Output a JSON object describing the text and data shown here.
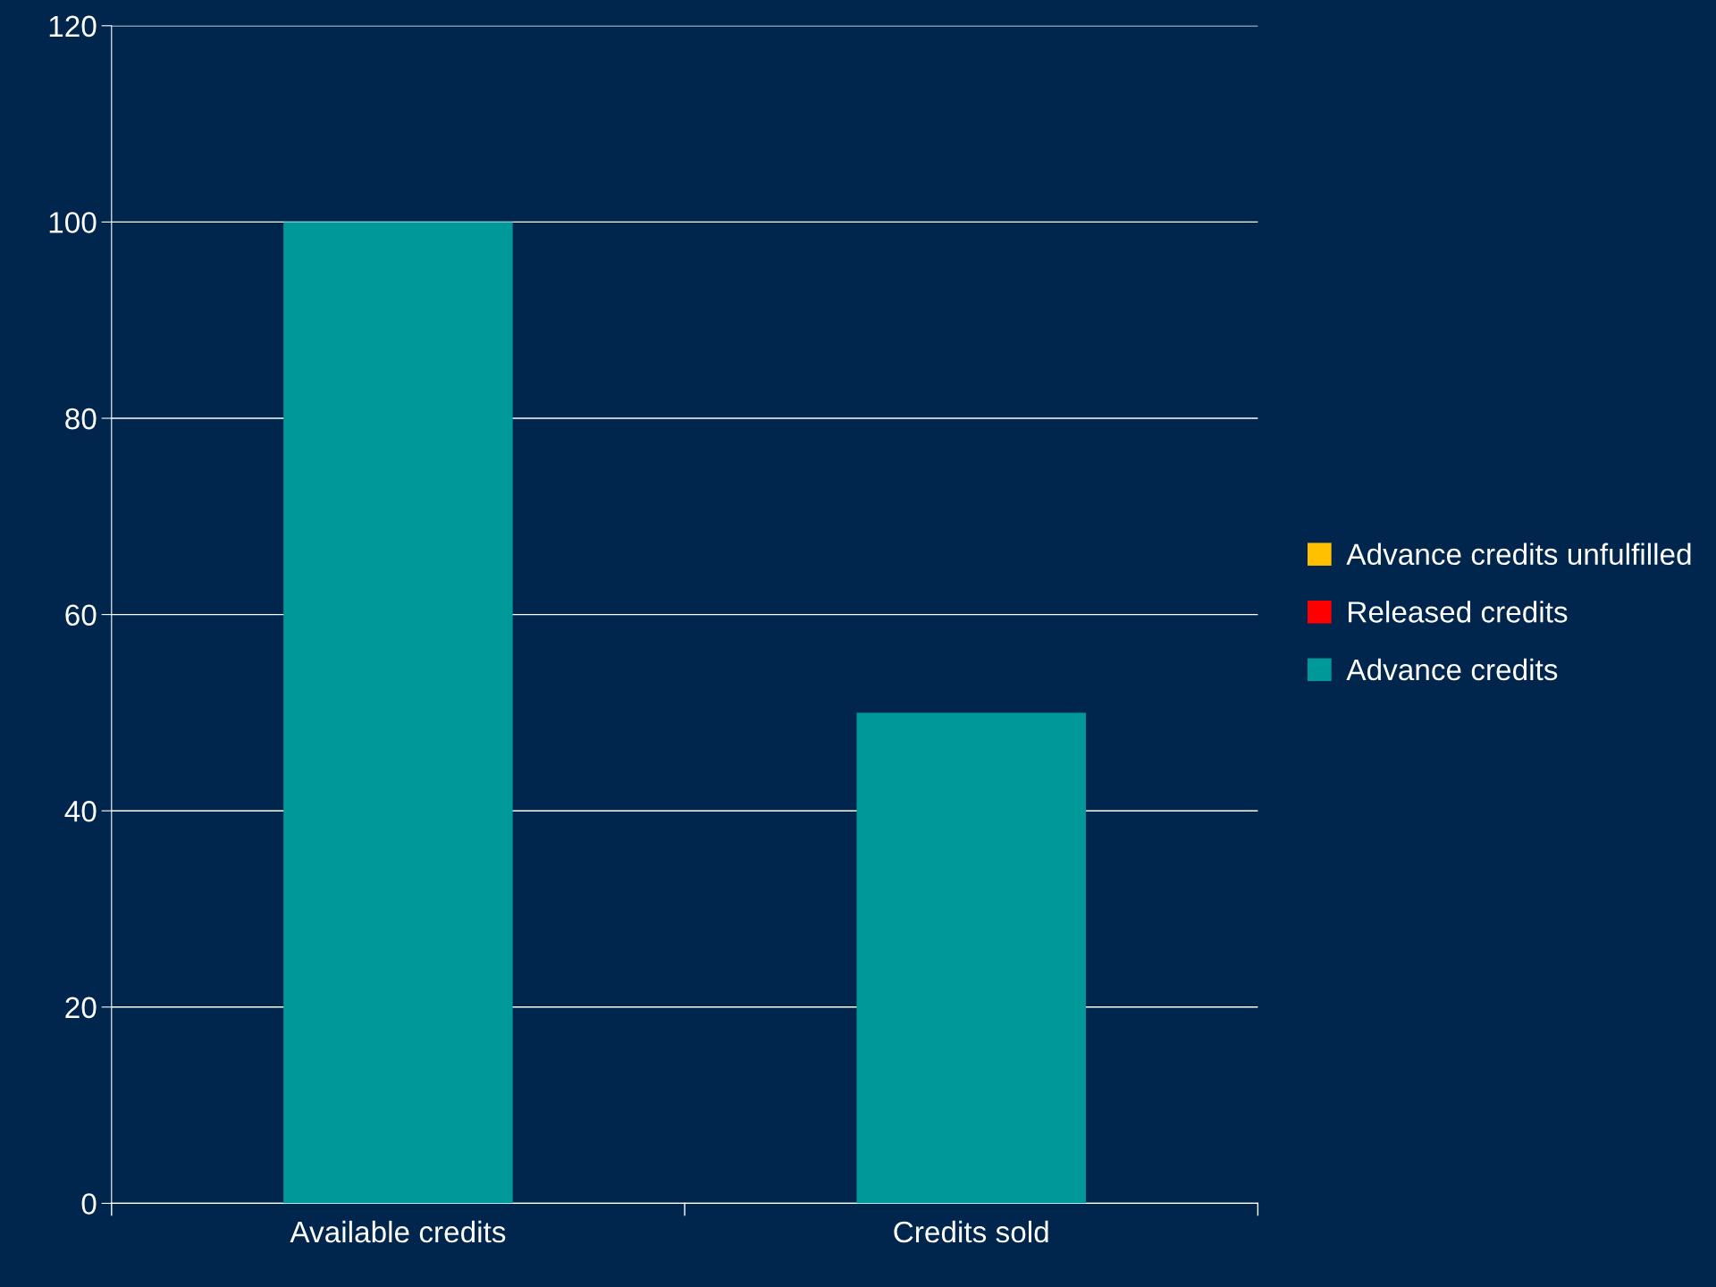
{
  "chart_data": {
    "type": "bar",
    "stacked": true,
    "categories": [
      "Available credits",
      "Credits sold"
    ],
    "series": [
      {
        "name": "Advance credits",
        "color": "#009999",
        "values": [
          100,
          50
        ]
      },
      {
        "name": "Released credits",
        "color": "#ff0000",
        "values": [
          0,
          0
        ]
      },
      {
        "name": "Advance credits unfulfilled",
        "color": "#ffc000",
        "values": [
          0,
          0
        ]
      }
    ],
    "ylim": [
      0,
      120
    ],
    "yticks": [
      0,
      20,
      40,
      60,
      80,
      100,
      120
    ],
    "grid": "y",
    "legend": "right"
  }
}
